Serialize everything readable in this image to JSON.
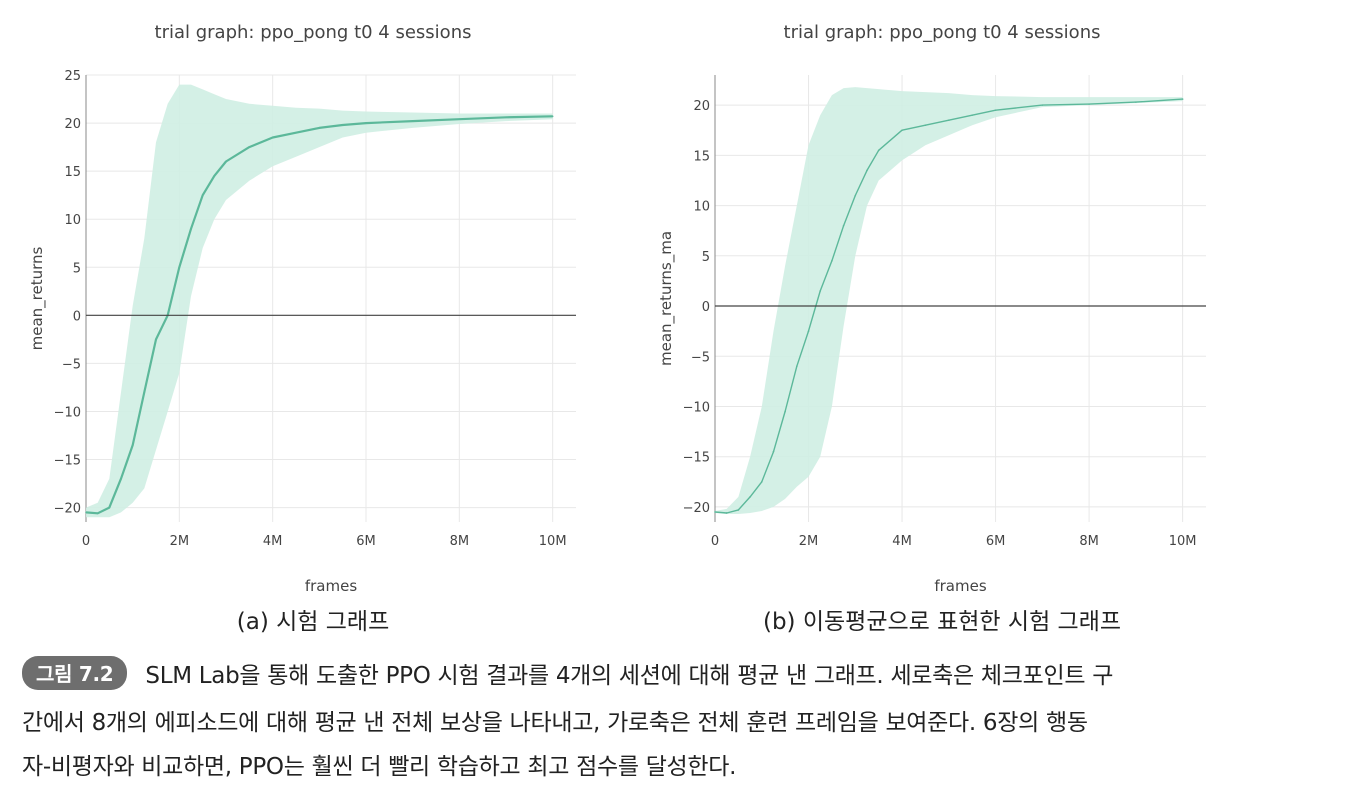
{
  "figure": {
    "sub_caption_a": "(a) 시험 그래프",
    "sub_caption_b": "(b) 이동평균으로 표현한 시험 그래프",
    "caption_badge": "그림 7.2",
    "caption_lines": [
      "SLM Lab을 통해 도출한 PPO 시험 결과를 4개의 세션에 대해 평균 낸 그래프. 세로축은 체크포인트 구",
      "간에서 8개의 에피소드에 대해 평균 낸 전체 보상을 나타내고, 가로축은 전체 훈련 프레임을 보여준다. 6장의 행동",
      "자-비평자와 비교하면, PPO는 훨씬 더 빨리 학습하고 최고 점수를 달성한다."
    ]
  },
  "colors": {
    "line": "#5cb89a",
    "band": "#cfeee3",
    "zero_line": "#444444",
    "grid": "#e8e8e8"
  },
  "chart_data": [
    {
      "type": "line",
      "title": "trial graph: ppo_pong t0 4 sessions",
      "xlabel": "frames",
      "ylabel": "mean_returns",
      "xlim": [
        0,
        10500000
      ],
      "ylim": [
        -21.5,
        25
      ],
      "xticks": [
        0,
        2000000,
        4000000,
        6000000,
        8000000,
        10000000
      ],
      "xtick_labels": [
        "0",
        "2M",
        "4M",
        "6M",
        "8M",
        "10M"
      ],
      "yticks": [
        -20,
        -15,
        -10,
        -5,
        0,
        5,
        10,
        15,
        20,
        25
      ],
      "ytick_labels": [
        "−20",
        "−15",
        "−10",
        "−5",
        "0",
        "5",
        "10",
        "15",
        "20",
        "25"
      ],
      "grid": true,
      "series": [
        {
          "x": [
            0,
            250000,
            500000,
            750000,
            1000000,
            1250000,
            1500000,
            1750000,
            2000000,
            2250000,
            2500000,
            2750000,
            3000000,
            3500000,
            4000000,
            4500000,
            5000000,
            5500000,
            6000000,
            7000000,
            8000000,
            9000000,
            10000000
          ],
          "y": [
            -20.5,
            -20.6,
            -20.0,
            -17.0,
            -13.5,
            -8.0,
            -2.5,
            0.0,
            5.0,
            9.0,
            12.5,
            14.5,
            16.0,
            17.5,
            18.5,
            19.0,
            19.5,
            19.8,
            20.0,
            20.2,
            20.4,
            20.6,
            20.7
          ],
          "upper": [
            -20.0,
            -19.5,
            -17.0,
            -8.0,
            1.0,
            8.0,
            18.0,
            22.0,
            24.0,
            24.0,
            23.5,
            23.0,
            22.5,
            22.0,
            21.8,
            21.6,
            21.5,
            21.3,
            21.2,
            21.1,
            21.0,
            21.0,
            21.0
          ],
          "lower": [
            -21.0,
            -21.0,
            -21.0,
            -20.5,
            -19.5,
            -18.0,
            -14.0,
            -10.0,
            -6.0,
            2.0,
            7.0,
            10.0,
            12.0,
            14.0,
            15.5,
            16.5,
            17.5,
            18.5,
            19.0,
            19.5,
            19.9,
            20.2,
            20.4
          ]
        }
      ]
    },
    {
      "type": "line",
      "title": "trial graph: ppo_pong t0 4 sessions",
      "xlabel": "frames",
      "ylabel": "mean_returns_ma",
      "xlim": [
        0,
        10500000
      ],
      "ylim": [
        -21.5,
        23
      ],
      "xticks": [
        0,
        2000000,
        4000000,
        6000000,
        8000000,
        10000000
      ],
      "xtick_labels": [
        "0",
        "2M",
        "4M",
        "6M",
        "8M",
        "10M"
      ],
      "yticks": [
        -20,
        -15,
        -10,
        -5,
        0,
        5,
        10,
        15,
        20
      ],
      "ytick_labels": [
        "−20",
        "−15",
        "−10",
        "−5",
        "0",
        "5",
        "10",
        "15",
        "20"
      ],
      "grid": true,
      "series": [
        {
          "x": [
            0,
            250000,
            500000,
            750000,
            1000000,
            1250000,
            1500000,
            1750000,
            2000000,
            2250000,
            2500000,
            2750000,
            3000000,
            3250000,
            3500000,
            4000000,
            4500000,
            5000000,
            5500000,
            6000000,
            7000000,
            8000000,
            9000000,
            10000000
          ],
          "y": [
            -20.5,
            -20.6,
            -20.3,
            -19.0,
            -17.5,
            -14.5,
            -10.5,
            -6.0,
            -2.5,
            1.5,
            4.5,
            8.0,
            11.0,
            13.5,
            15.5,
            17.5,
            18.0,
            18.5,
            19.0,
            19.5,
            20.0,
            20.1,
            20.3,
            20.6
          ],
          "upper": [
            -20.4,
            -20.2,
            -19.0,
            -15.0,
            -10.0,
            -2.5,
            4.0,
            10.0,
            16.0,
            19.0,
            21.0,
            21.7,
            21.8,
            21.7,
            21.6,
            21.4,
            21.3,
            21.2,
            21.0,
            20.9,
            20.8,
            20.8,
            20.8,
            20.8
          ],
          "lower": [
            -20.6,
            -20.7,
            -20.7,
            -20.6,
            -20.4,
            -20.0,
            -19.2,
            -18.0,
            -17.0,
            -15.0,
            -10.0,
            -2.0,
            5.0,
            10.0,
            12.5,
            14.5,
            16.0,
            17.0,
            18.0,
            18.8,
            19.8,
            20.0,
            20.2,
            20.4
          ]
        }
      ]
    }
  ]
}
